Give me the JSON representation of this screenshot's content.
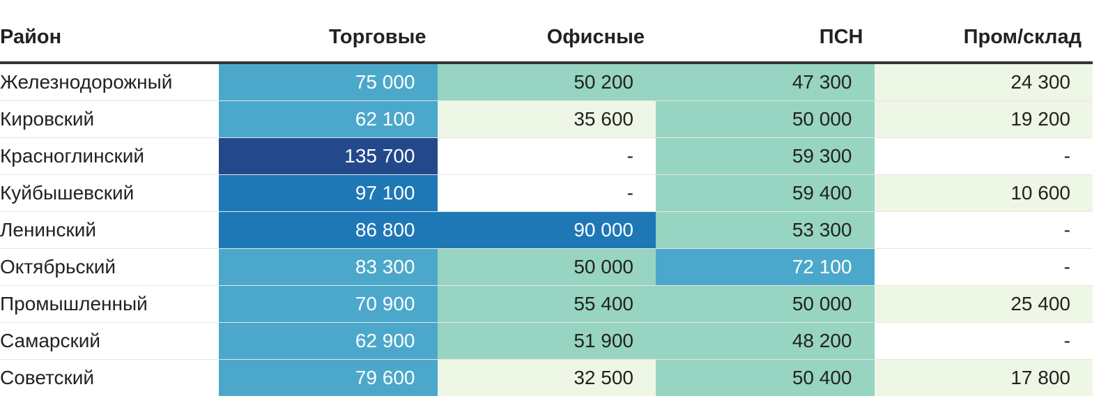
{
  "headers": [
    "Район",
    "Торговые",
    "Офисные",
    "ПСН",
    "Пром/склад"
  ],
  "colors": {
    "dark_navy": "#23498b",
    "dark_blue": "#1f78b6",
    "mid_blue": "#4ba8cb",
    "teal": "#97d4c1",
    "pale_green": "#eef7e5",
    "white": "#ffffff",
    "light_text": "#ffffff",
    "dark_text": "#222222"
  },
  "rows": [
    {
      "name": "Железнодорожный",
      "cells": [
        {
          "value": "75 000",
          "bg": "#4ba8cb",
          "fg": "#ffffff"
        },
        {
          "value": "50 200",
          "bg": "#97d4c1",
          "fg": "#222222"
        },
        {
          "value": "47 300",
          "bg": "#97d4c1",
          "fg": "#222222"
        },
        {
          "value": "24 300",
          "bg": "#eef7e5",
          "fg": "#222222"
        }
      ]
    },
    {
      "name": "Кировский",
      "cells": [
        {
          "value": "62 100",
          "bg": "#4ba8cb",
          "fg": "#ffffff"
        },
        {
          "value": "35 600",
          "bg": "#eef7e5",
          "fg": "#222222"
        },
        {
          "value": "50 000",
          "bg": "#97d4c1",
          "fg": "#222222"
        },
        {
          "value": "19 200",
          "bg": "#eef7e5",
          "fg": "#222222"
        }
      ]
    },
    {
      "name": "Красноглинский",
      "cells": [
        {
          "value": "135 700",
          "bg": "#23498b",
          "fg": "#ffffff"
        },
        {
          "value": "-",
          "bg": "#ffffff",
          "fg": "#222222"
        },
        {
          "value": "59 300",
          "bg": "#97d4c1",
          "fg": "#222222"
        },
        {
          "value": "-",
          "bg": "#ffffff",
          "fg": "#222222"
        }
      ]
    },
    {
      "name": "Куйбышевский",
      "cells": [
        {
          "value": "97 100",
          "bg": "#1f78b6",
          "fg": "#ffffff"
        },
        {
          "value": "-",
          "bg": "#ffffff",
          "fg": "#222222"
        },
        {
          "value": "59 400",
          "bg": "#97d4c1",
          "fg": "#222222"
        },
        {
          "value": "10 600",
          "bg": "#eef7e5",
          "fg": "#222222"
        }
      ]
    },
    {
      "name": "Ленинский",
      "cells": [
        {
          "value": "86 800",
          "bg": "#1f78b6",
          "fg": "#ffffff"
        },
        {
          "value": "90 000",
          "bg": "#1f78b6",
          "fg": "#ffffff"
        },
        {
          "value": "53 300",
          "bg": "#97d4c1",
          "fg": "#222222"
        },
        {
          "value": "-",
          "bg": "#ffffff",
          "fg": "#222222"
        }
      ]
    },
    {
      "name": "Октябрьский",
      "cells": [
        {
          "value": "83 300",
          "bg": "#4ba8cb",
          "fg": "#ffffff"
        },
        {
          "value": "50 000",
          "bg": "#97d4c1",
          "fg": "#222222"
        },
        {
          "value": "72 100",
          "bg": "#4ba8cb",
          "fg": "#ffffff"
        },
        {
          "value": "-",
          "bg": "#ffffff",
          "fg": "#222222"
        }
      ]
    },
    {
      "name": "Промышленный",
      "cells": [
        {
          "value": "70 900",
          "bg": "#4ba8cb",
          "fg": "#ffffff"
        },
        {
          "value": "55 400",
          "bg": "#97d4c1",
          "fg": "#222222"
        },
        {
          "value": "50 000",
          "bg": "#97d4c1",
          "fg": "#222222"
        },
        {
          "value": "25 400",
          "bg": "#eef7e5",
          "fg": "#222222"
        }
      ]
    },
    {
      "name": "Самарский",
      "cells": [
        {
          "value": "62 900",
          "bg": "#4ba8cb",
          "fg": "#ffffff"
        },
        {
          "value": "51 900",
          "bg": "#97d4c1",
          "fg": "#222222"
        },
        {
          "value": "48 200",
          "bg": "#97d4c1",
          "fg": "#222222"
        },
        {
          "value": "-",
          "bg": "#ffffff",
          "fg": "#222222"
        }
      ]
    },
    {
      "name": "Советский",
      "cells": [
        {
          "value": "79 600",
          "bg": "#4ba8cb",
          "fg": "#ffffff"
        },
        {
          "value": "32 500",
          "bg": "#eef7e5",
          "fg": "#222222"
        },
        {
          "value": "50 400",
          "bg": "#97d4c1",
          "fg": "#222222"
        },
        {
          "value": "17 800",
          "bg": "#eef7e5",
          "fg": "#222222"
        }
      ]
    }
  ]
}
